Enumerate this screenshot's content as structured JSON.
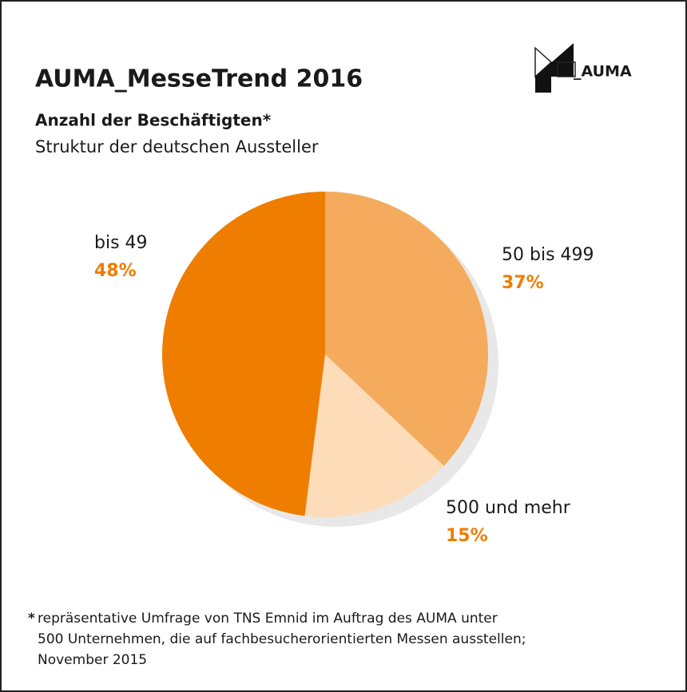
{
  "chart_data": {
    "type": "pie",
    "title": "AUMA_MesseTrend 2016",
    "logo": "_AUMA",
    "subtitle": "Anzahl der Beschäftigten*",
    "subtitle2": "Struktur der deutschen Aussteller",
    "categories": [
      "50 bis 499",
      "500 und mehr",
      "bis 49"
    ],
    "values": [
      37,
      15,
      48
    ],
    "value_labels": [
      "37%",
      "15%",
      "48%"
    ],
    "colors": [
      "#f4ab5e",
      "#fcdcb9",
      "#ef7d00"
    ],
    "label_color": "#ef7d00",
    "footnote_marker": "*",
    "footnote": [
      "repräsentative Umfrage von TNS Emnid im Auftrag des AUMA unter",
      "500 Unternehmen, die auf fachbesucherorientierten Messen ausstellen;",
      "November 2015"
    ]
  }
}
